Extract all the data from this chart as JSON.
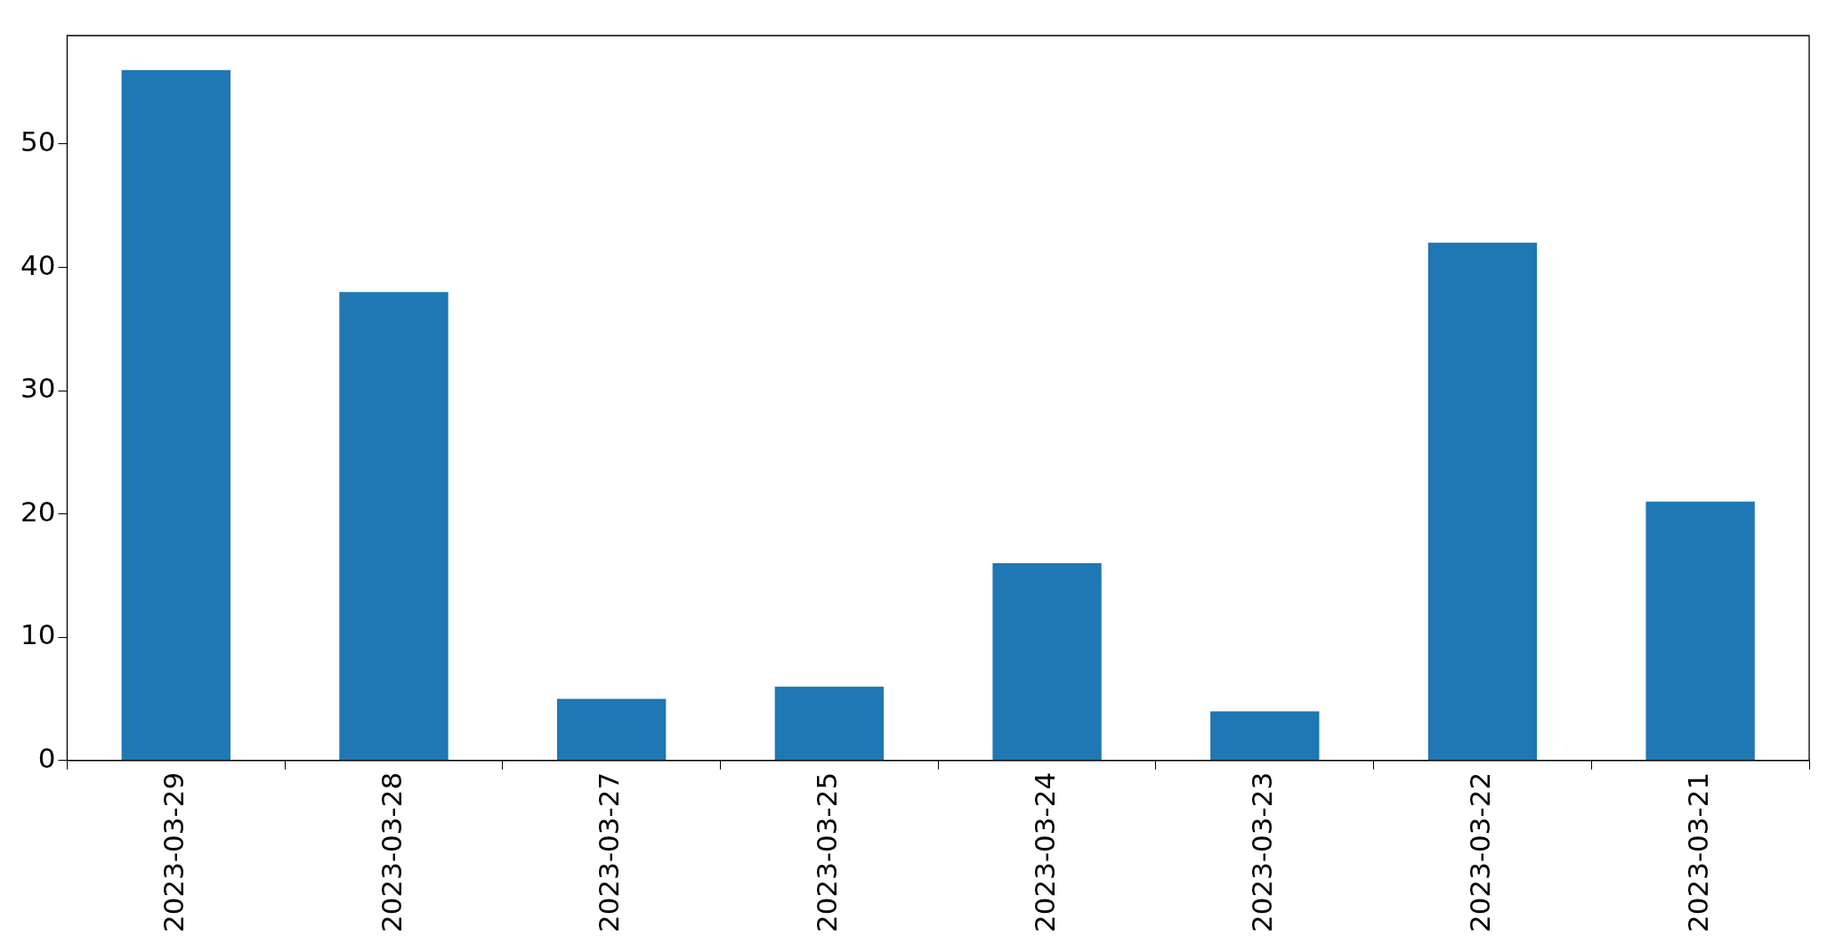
{
  "chart_data": {
    "type": "bar",
    "categories": [
      "2023-03-29",
      "2023-03-28",
      "2023-03-27",
      "2023-03-25",
      "2023-03-24",
      "2023-03-23",
      "2023-03-22",
      "2023-03-21"
    ],
    "values": [
      56,
      38,
      5,
      6,
      16,
      4,
      42,
      21
    ],
    "color": "#1f77b4",
    "ylim": [
      0,
      58.8
    ],
    "yticks": [
      0,
      10,
      20,
      30,
      40,
      50
    ],
    "grid": false,
    "legend": false
  }
}
